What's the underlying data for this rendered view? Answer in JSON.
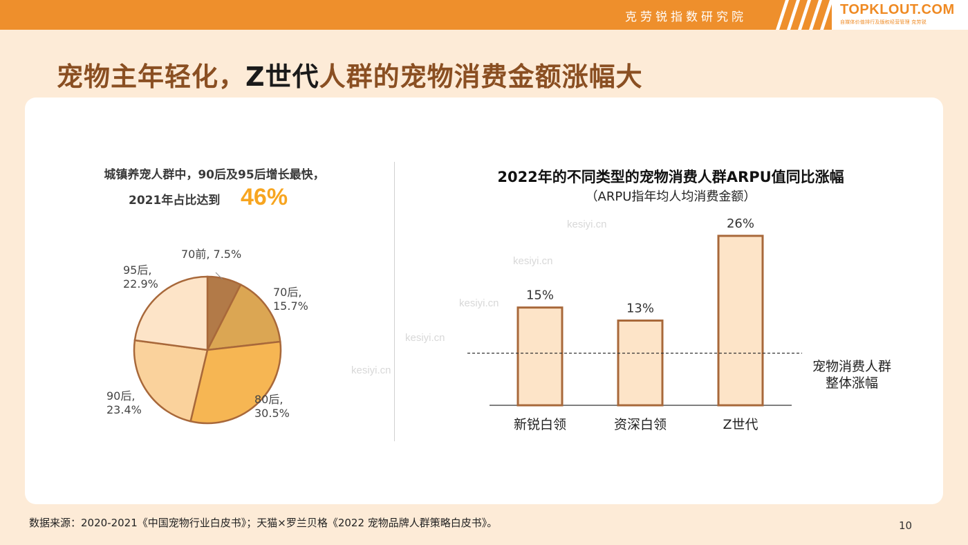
{
  "header": {
    "institute": "克劳锐指数研究院",
    "logo_text": "TOPKLOUT.COM",
    "logo_sub": "自媒体价值排行及版权经营管理 克劳锐"
  },
  "headline": {
    "part1": "宠物主年轻化，",
    "part2": "Z世代",
    "part3": "人群的宠物消费金额涨幅大"
  },
  "left": {
    "title_line1": "城镇养宠人群中，90后及95后增长最快，",
    "title_line2": "2021年占比达到",
    "highlight": "46%"
  },
  "right": {
    "title": "2022年的不同类型的宠物消费人群ARPU值同比涨幅",
    "subtitle": "（ARPU指年均人均消费金额）",
    "ref_label_line1": "宠物消费人群",
    "ref_label_line2": "整体涨幅"
  },
  "watermark": "kesiyi.cn",
  "chart_data": [
    {
      "type": "pie",
      "slices": [
        {
          "label": "70前",
          "value": 7.5,
          "text": "70前, 7.5%",
          "color": "#b27a48"
        },
        {
          "label": "70后",
          "value": 15.7,
          "text_line1": "70后,",
          "text_line2": "15.7%",
          "color": "#dba653"
        },
        {
          "label": "80后",
          "value": 30.5,
          "text_line1": "80后,",
          "text_line2": "30.5%",
          "color": "#f6b653"
        },
        {
          "label": "90后",
          "value": 23.4,
          "text_line1": "90后,",
          "text_line2": "23.4%",
          "color": "#fad29c"
        },
        {
          "label": "95后",
          "value": 22.9,
          "text_line1": "95后,",
          "text_line2": "22.9%",
          "color": "#fde4c8"
        }
      ],
      "stroke_color": "#a8683a"
    },
    {
      "type": "bar",
      "categories": [
        "新锐白领",
        "资深白领",
        "Z世代"
      ],
      "values": [
        15,
        13,
        26
      ],
      "labels": [
        "15%",
        "13%",
        "26%"
      ],
      "reference_value": 8,
      "fill_color": "#fde4c8",
      "stroke_color": "#a8683a"
    }
  ],
  "footer": {
    "source": "数据来源：2020-2021《中国宠物行业白皮书》；天猫×罗兰贝格《2022 宠物品牌人群策略白皮书》。",
    "page": "10"
  }
}
